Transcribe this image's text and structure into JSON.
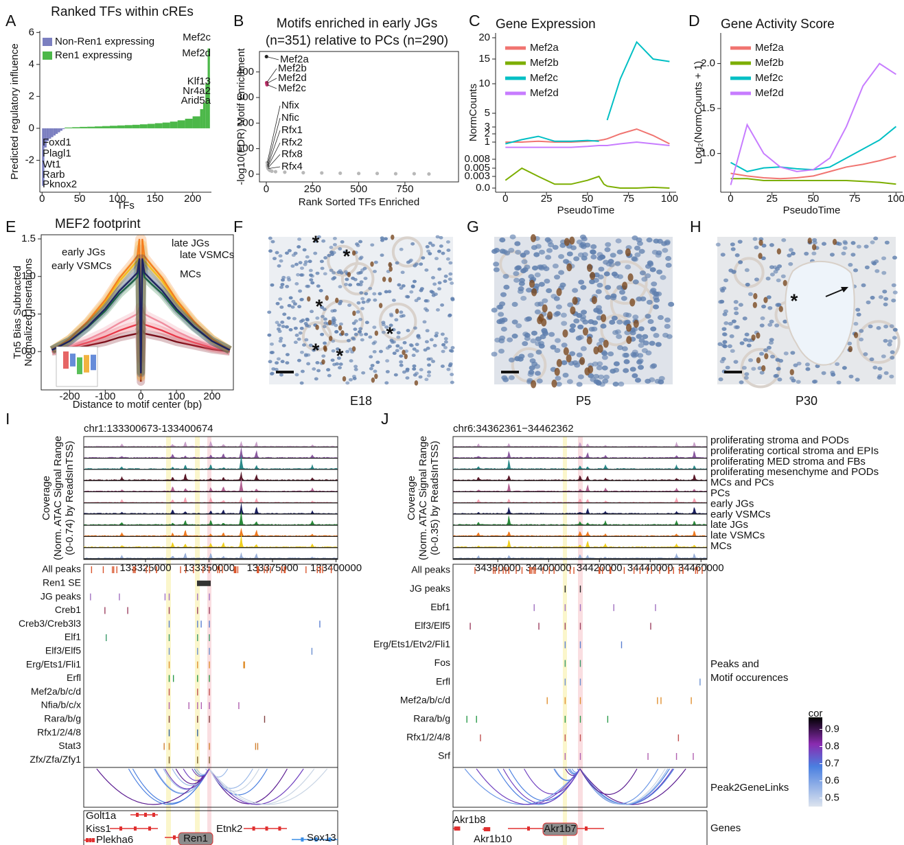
{
  "panel_letters": [
    "A",
    "B",
    "C",
    "D",
    "E",
    "F",
    "G",
    "H",
    "I",
    "J"
  ],
  "chart_data": [
    {
      "type": "bar",
      "title": "Ranked TFs within cREs",
      "x_label": "TFs",
      "y_label": "Predicted regulatory influence",
      "series": [
        {
          "name": "Non-Ren1 expressing",
          "color": "#7b7fc0",
          "x": [
            0,
            3,
            6,
            9,
            12,
            15,
            18,
            21,
            24,
            27
          ],
          "values": [
            -3.6,
            -1.2,
            -0.8,
            -0.65,
            -0.55,
            -0.45,
            -0.35,
            -0.25,
            -0.15,
            -0.05
          ]
        },
        {
          "name": "Ren1 expressing",
          "color": "#4cb849",
          "x": [
            30,
            40,
            50,
            60,
            70,
            80,
            90,
            100,
            110,
            120,
            130,
            140,
            150,
            160,
            170,
            180,
            190,
            200,
            210,
            214,
            217,
            220
          ],
          "values": [
            0.05,
            0.07,
            0.09,
            0.1,
            0.12,
            0.14,
            0.16,
            0.18,
            0.2,
            0.22,
            0.25,
            0.28,
            0.32,
            0.36,
            0.42,
            0.5,
            0.6,
            0.75,
            1.2,
            1.6,
            2.8,
            5.0
          ]
        }
      ],
      "xlim": [
        -3,
        225
      ],
      "xticks": [
        0,
        50,
        100,
        150,
        200
      ],
      "ylim": [
        -4,
        6.1
      ],
      "yticks": [
        -2,
        0,
        2,
        4,
        6
      ],
      "annotations": [
        "Mef2c",
        "Mef2d",
        "Klf13",
        "Nr4a2",
        "Arid5a",
        "Foxd1",
        "Plagl1",
        "Wt1",
        "Rarb",
        "Pknox2"
      ]
    },
    {
      "type": "scatter",
      "title": [
        "Motifs enriched in early JGs",
        "(n=351) relative to PCs (n=290)"
      ],
      "x_label": "Rank Sorted TFs Enriched",
      "y_label": "-log10(FDR) Motif Enrichment",
      "x": [
        1,
        2,
        3,
        4,
        5,
        6,
        7,
        8,
        9,
        10,
        15,
        20,
        30,
        50,
        100,
        200,
        300,
        400,
        500,
        600,
        700,
        800,
        880
      ],
      "values": [
        460,
        358,
        355,
        350,
        45,
        35,
        30,
        28,
        25,
        22,
        18,
        15,
        12,
        10,
        8,
        6,
        5,
        4,
        3,
        3,
        2,
        2,
        1
      ],
      "color": "#b8b8b8",
      "xlim": [
        -37,
        1040
      ],
      "xticks": [
        0,
        250,
        500,
        750
      ],
      "ylim": [
        -30,
        480
      ],
      "yticks": [
        0,
        100,
        200,
        300,
        400
      ],
      "annotations": [
        "Mef2a",
        "Mef2b",
        "Mef2d",
        "Mef2c",
        "Nfix",
        "Nfic",
        "Rfx1",
        "Rfx2",
        "Rfx8",
        "Rfx4"
      ]
    },
    {
      "type": "line",
      "title": "Gene Expression",
      "x_label": "PseudoTime",
      "y_label": "NormCounts",
      "x": [
        0,
        10,
        20,
        30,
        40,
        50,
        57,
        60,
        62,
        70,
        80,
        90,
        100
      ],
      "series": [
        {
          "name": "Mef2a",
          "color": "#f07470",
          "values": [
            1.0,
            1.0,
            1.1,
            1.0,
            1.0,
            1.1,
            1.2,
            1.3,
            1.4,
            2,
            2.7,
            1.8,
            0.9
          ]
        },
        {
          "name": "Mef2b",
          "color": "#7cae00",
          "values": [
            0.002,
            0.005,
            0.003,
            0.001,
            0.001,
            0.002,
            0.003,
            0.001,
            0.0005,
            0,
            0,
            0.0002,
            0
          ]
        },
        {
          "name": "Mef2c",
          "color": "#00bfc4",
          "values": [
            0.9,
            1.3,
            1.7,
            1.1,
            1.1,
            1.2,
            1.1,
            null,
            4,
            11,
            19,
            15,
            14.5
          ]
        },
        {
          "name": "Mef2d",
          "color": "#c77cff",
          "values": [
            0.7,
            0.7,
            0.7,
            0.7,
            0.7,
            0.75,
            0.8,
            0.8,
            0.8,
            0.9,
            1.0,
            0.9,
            0.8
          ]
        }
      ],
      "xlim": [
        -6,
        104
      ],
      "xticks": [
        0,
        25,
        50,
        75,
        100
      ],
      "ylim": [
        0,
        20
      ],
      "yticks": [
        {
          "value": 0,
          "label": "0.0"
        },
        0.003,
        0.005,
        0.008,
        1,
        2,
        3,
        5,
        10,
        15,
        20
      ]
    },
    {
      "type": "line",
      "title": "Gene Activity Score",
      "x_label": "PseudoTime",
      "y_label": "Log₂(NormCounts + 1)",
      "x": [
        0,
        10,
        20,
        30,
        40,
        50,
        60,
        70,
        80,
        90,
        100
      ],
      "series": [
        {
          "name": "Mef2a",
          "color": "#f07470",
          "values": [
            0.78,
            0.75,
            0.73,
            0.72,
            0.73,
            0.75,
            0.8,
            0.85,
            0.88,
            0.92,
            0.97
          ]
        },
        {
          "name": "Mef2b",
          "color": "#7cae00",
          "values": [
            0.72,
            0.72,
            0.7,
            0.7,
            0.7,
            0.7,
            0.7,
            0.7,
            0.69,
            0.68,
            0.66
          ]
        },
        {
          "name": "Mef2c",
          "color": "#00bfc4",
          "values": [
            0.9,
            0.8,
            0.84,
            0.85,
            0.83,
            0.82,
            0.85,
            0.95,
            1.05,
            1.15,
            1.3
          ]
        },
        {
          "name": "Mef2d",
          "color": "#c77cff",
          "values": [
            0.65,
            1.32,
            1.0,
            0.85,
            0.8,
            0.82,
            0.95,
            1.3,
            1.75,
            2.0,
            1.88
          ]
        }
      ],
      "xlim": [
        -6,
        104
      ],
      "xticks": [
        0,
        25,
        50,
        75,
        100
      ],
      "ylim": [
        0.57,
        2.34
      ],
      "yticks": [
        {
          "value": 1,
          "label": "1.0"
        },
        1.5,
        {
          "value": 2,
          "label": "2.0"
        }
      ]
    },
    {
      "type": "line",
      "title": "MEF2 footprint",
      "x_label": "Distance to motif center (bp)",
      "y_label": [
        "Tn5 Bias Subtracted",
        "Normalized Insertations"
      ],
      "x": [
        -250,
        -200,
        -150,
        -100,
        -60,
        -30,
        -10,
        -4,
        0,
        4,
        10,
        30,
        60,
        100,
        150,
        200,
        250
      ],
      "series": [
        {
          "name": "early JGs",
          "color": "#1f2260",
          "values": [
            0.02,
            0.14,
            0.33,
            0.57,
            0.81,
            0.95,
            1.05,
            1.24,
            -0.29,
            1.24,
            1.05,
            0.95,
            0.81,
            0.57,
            0.33,
            0.14,
            0.02
          ]
        },
        {
          "name": "late JGs",
          "color": "#f57f20",
          "values": [
            0.02,
            0.17,
            0.4,
            0.69,
            0.98,
            1.15,
            1.27,
            1.5,
            -0.35,
            1.5,
            1.27,
            1.15,
            0.98,
            0.69,
            0.4,
            0.17,
            0.02
          ]
        },
        {
          "name": "late VSMCs",
          "color": "#f2d41f",
          "values": [
            0.02,
            0.17,
            0.39,
            0.66,
            0.94,
            1.1,
            1.21,
            1.43,
            -0.33,
            1.43,
            1.21,
            1.1,
            0.94,
            0.66,
            0.39,
            0.17,
            0.02
          ]
        },
        {
          "name": "early VSMCs",
          "color": "#1e7a3c",
          "values": [
            0.02,
            0.14,
            0.32,
            0.54,
            0.77,
            0.9,
            0.99,
            1.17,
            -0.27,
            1.17,
            0.99,
            0.9,
            0.77,
            0.54,
            0.32,
            0.14,
            0.02
          ]
        },
        {
          "name": "MCs",
          "color": "#9eb4d8",
          "values": [
            0.02,
            0.16,
            0.37,
            0.63,
            0.89,
            1.05,
            1.16,
            1.37,
            -0.32,
            1.37,
            1.16,
            1.05,
            0.89,
            0.63,
            0.37,
            0.16,
            0.02
          ]
        },
        {
          "color": "#f08fa0",
          "values": [
            0.01,
            0.07,
            0.16,
            0.27,
            0.38,
            0.45,
            0.5,
            0.59,
            -0.14,
            0.59,
            0.5,
            0.45,
            0.38,
            0.27,
            0.16,
            0.07,
            0.01
          ]
        },
        {
          "color": "#e83a4a",
          "values": [
            0.01,
            0.05,
            0.12,
            0.2,
            0.28,
            0.33,
            0.36,
            0.43,
            -0.1,
            0.43,
            0.36,
            0.33,
            0.28,
            0.2,
            0.12,
            0.05,
            0.01
          ]
        },
        {
          "color": "#7a0f1a",
          "values": [
            0,
            0.03,
            0.08,
            0.13,
            0.19,
            0.22,
            0.24,
            0.29,
            -0.4,
            0.29,
            0.24,
            0.22,
            0.19,
            0.13,
            0.08,
            0.03,
            0
          ]
        }
      ],
      "xlim": [
        -280,
        260
      ],
      "xticks": [
        -200,
        -100,
        0,
        100,
        200
      ],
      "ylim": [
        -0.51,
        1.555
      ],
      "yticks": [
        {
          "value": 0,
          "label": "0.0"
        },
        0.5,
        {
          "value": 1,
          "label": "1.0"
        },
        1.5
      ]
    }
  ],
  "images": {
    "F": {
      "label": "E18",
      "marker": "*"
    },
    "G": {
      "label": "P5"
    },
    "H": {
      "label": "P30",
      "marker": "*"
    }
  },
  "tracks": {
    "I": {
      "region": "chr1:133300673-133400674",
      "y_label": [
        "Coverage",
        "(Norm. ATAC Signal Range",
        "(0-0.74) by ReadsInTSS)"
      ],
      "xlim": [
        133300673,
        133400674
      ],
      "xticks": [
        133325000,
        133350000,
        133375000,
        133400000
      ],
      "rows": [
        "All peaks",
        "Ren1 SE",
        "JG peaks",
        "Creb1",
        "Creb3/Creb3l3",
        "Elf1",
        "Elf3/Elf5",
        "Erg/Ets1/Fli1",
        "Erfl",
        "Mef2a/b/c/d",
        "Nfia/b/c/x",
        "Rara/b/g",
        "Rfx1/2/4/8",
        "Stat3",
        "Zfx/Zfa/Zfy1"
      ],
      "genes": [
        "Golt1a",
        "Kiss1",
        "Plekha6",
        "Ren1",
        "Etnk2",
        "Sox13"
      ]
    },
    "J": {
      "region": "chr6:34362361−34462362",
      "y_label": [
        "Coverage",
        "(Norm. ATAC Signal Range",
        "(0-0.35) by ReadsInTSS)"
      ],
      "xlim": [
        34362361,
        34462362
      ],
      "xticks": [
        34380000,
        34400000,
        34420000,
        34440000,
        34460000
      ],
      "cell_types": [
        "proliferating stroma and PODs",
        "proliferating cortical stroma and EPIs",
        "proliferating MED stroma and FBs",
        "proliferating mesenchyme and PODs",
        "MCs and PCs",
        "PCs",
        "early JGs",
        "early VSMCs",
        "late JGs",
        "late VSMCs",
        "MCs"
      ],
      "rows": [
        "All peaks",
        "JG peaks",
        "Ebf1",
        "Elf3/Elf5",
        "Erg/Ets1/Etv2/Fli1",
        "Fos",
        "Erfl",
        "Mef2a/b/c/d",
        "Rara/b/g",
        "Rfx1/2/4/8",
        "Srf"
      ],
      "row_group": [
        "Peaks and",
        "Motif occurences"
      ],
      "links_label": "Peak2GeneLinks",
      "genes_label": "Genes",
      "genes": [
        "Akr1b8",
        "Akr1b10",
        "Akr1b7"
      ],
      "colorbar": {
        "title": "cor",
        "lim": [
          0.45,
          0.97
        ],
        "ticks": [
          0.5,
          0.6,
          0.7,
          0.8,
          0.9
        ]
      }
    }
  }
}
